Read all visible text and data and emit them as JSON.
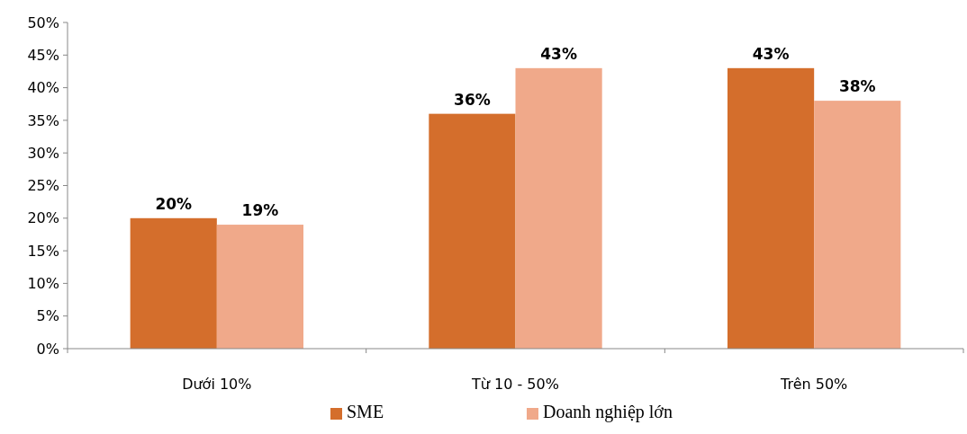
{
  "chart_data": {
    "type": "bar",
    "categories": [
      "Dưới 10%",
      "Từ 10 - 50%",
      "Trên 50%"
    ],
    "series": [
      {
        "name": "SME",
        "color": "#d46e2c",
        "values": [
          20,
          36,
          43
        ],
        "value_labels": [
          "20%",
          "36%",
          "43%"
        ]
      },
      {
        "name": "Doanh nghiệp lớn",
        "color": "#f0a98a",
        "values": [
          19,
          43,
          38
        ],
        "value_labels": [
          "19%",
          "43%",
          "38%"
        ]
      }
    ],
    "ylim": [
      0,
      50
    ],
    "yticks": [
      {
        "value": 0,
        "label": "0%"
      },
      {
        "value": 5,
        "label": "5%"
      },
      {
        "value": 10,
        "label": "10%"
      },
      {
        "value": 15,
        "label": "15%"
      },
      {
        "value": 20,
        "label": "20%"
      },
      {
        "value": 25,
        "label": "25%"
      },
      {
        "value": 30,
        "label": "30%"
      },
      {
        "value": 35,
        "label": "35%"
      },
      {
        "value": 40,
        "label": "40%"
      },
      {
        "value": 45,
        "label": "45%"
      },
      {
        "value": 50,
        "label": "50%"
      }
    ],
    "grid": false,
    "legend": "bottom"
  }
}
